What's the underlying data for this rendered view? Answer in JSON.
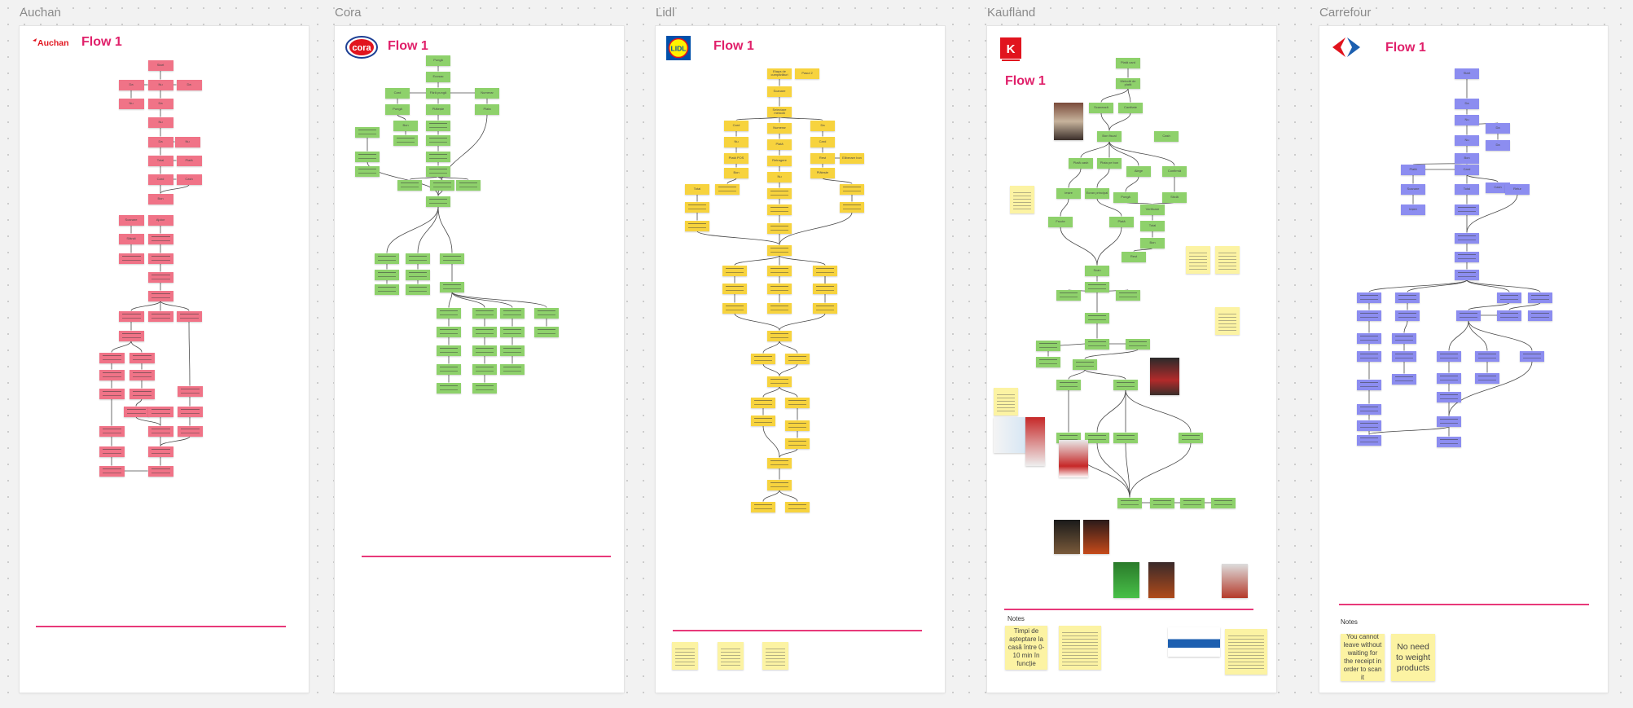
{
  "colors": {
    "auchan": "#f07387",
    "cora": "#8ed16b",
    "lidl": "#f7d33e",
    "kaufland": "#8ed16b",
    "carrefour": "#8c8df0",
    "note": "#fcf3a3",
    "accent": "#e0206a",
    "connector": "#4a4a4a"
  },
  "frames": [
    {
      "label": "Auchan"
    },
    {
      "label": "Cora"
    },
    {
      "label": "Lidl"
    },
    {
      "label": "Kaufland"
    },
    {
      "label": "Carrefour"
    }
  ],
  "boards": {
    "auchan": {
      "title": "Flow 1",
      "brand_text": "Auchan",
      "brand_icon": "auchan-bird-logo"
    },
    "cora": {
      "title": "Flow 1",
      "brand_text": "cora",
      "brand_icon": "cora-oval-logo"
    },
    "lidl": {
      "title": "Flow 1",
      "brand_text": "LIDL",
      "brand_icon": "lidl-circle-logo"
    },
    "kaufland": {
      "title": "Flow 1",
      "brand_text": "K",
      "brand_icon": "kaufland-k-logo",
      "notes_label": "Notes",
      "notes": [
        "Timpi de așteptare la casă între 0-10 min în funcție"
      ]
    },
    "carrefour": {
      "title": "Flow 1",
      "brand_icon": "carrefour-c-logo",
      "notes_label": "Notes",
      "notes": [
        "You cannot leave without waiting for the receipt in order to scan it",
        "No need to weight products"
      ]
    }
  },
  "readable_labels": {
    "cora": [
      "Pungă",
      "Ecosac",
      "Fără pungă",
      "Card",
      "Numerar",
      "Pungă",
      "Plătește",
      "Plata",
      "Bon"
    ],
    "lidl": [
      "Etapa de cumpărături",
      "Pasul 2",
      "Scanare",
      "Selectare metodă",
      "Card",
      "Numerar",
      "Da",
      "Nu",
      "Plată",
      "Card",
      "Plată POS",
      "Retragere",
      "Rest",
      "Eliberare bon",
      "Bon",
      "Nu",
      "Plătește",
      "Total"
    ],
    "kaufland": [
      "Plată card",
      "Metodă de plată",
      "Scanează",
      "Cantitate",
      "Bon fiscal",
      "Cash",
      "Plată cash",
      "Plata pe bon",
      "Alege",
      "Confirmă",
      "Ieșire",
      "Ecran principal",
      "Pungă",
      "Sticlă",
      "Fructe",
      "Plată",
      "Verificare",
      "Total",
      "Bon",
      "Rest",
      "Scan"
    ],
    "carrefour": [
      "Start",
      "Da",
      "Nu",
      "Da",
      "Nu",
      "Da",
      "Bon",
      "Plată",
      "Card",
      "Cash",
      "Scanare",
      "Total",
      "Retur",
      "Ieșire"
    ],
    "auchan": [
      "Start",
      "Da",
      "Nu",
      "Da",
      "Nu",
      "Da",
      "Nu",
      "Da",
      "Nu",
      "Total",
      "Plată",
      "Card",
      "Cash",
      "Bon",
      "Scanare",
      "Ajutor",
      "Sfârșit"
    ]
  }
}
